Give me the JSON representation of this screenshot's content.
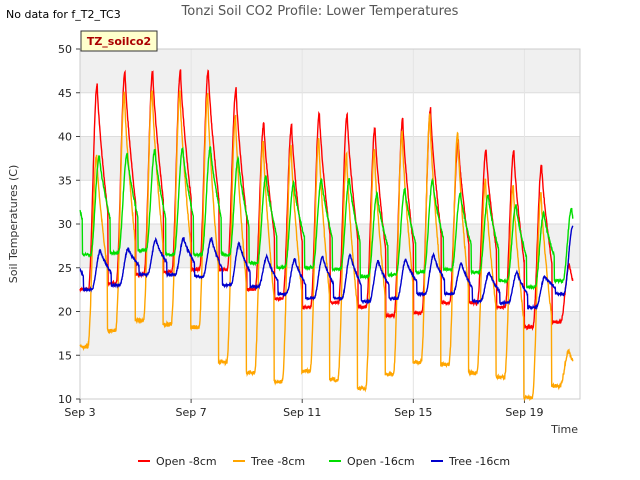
{
  "corner_note": "No data for f_T2_TC3",
  "chart_data": {
    "type": "line",
    "title": "Tonzi Soil CO2 Profile: Lower Temperatures",
    "xlabel": "Time",
    "ylabel": "Soil Temperatures (C)",
    "site_label": "TZ_soilco2",
    "x_start_day": 3.0,
    "xlim": [
      3.0,
      21.0
    ],
    "ylim": [
      10,
      50
    ],
    "yticks": [
      10,
      15,
      20,
      25,
      30,
      35,
      40,
      45,
      50
    ],
    "xticks": [
      {
        "day": 3,
        "label": "Sep 3"
      },
      {
        "day": 7,
        "label": "Sep 7"
      },
      {
        "day": 11,
        "label": "Sep 11"
      },
      {
        "day": 15,
        "label": "Sep 15"
      },
      {
        "day": 19,
        "label": "Sep 19"
      }
    ],
    "grid": true,
    "legend_position": "bottom",
    "x": [
      "Sep 3.3",
      "Sep 4.3",
      "Sep 5.3",
      "Sep 6.3",
      "Sep 7.3",
      "Sep 8.3",
      "Sep 9.3",
      "Sep 10.3",
      "Sep 11.3",
      "Sep 12.3",
      "Sep 13.3",
      "Sep 14.3",
      "Sep 15.3",
      "Sep 16.3",
      "Sep 17.3",
      "Sep 18.3",
      "Sep 19.3",
      "Sep 20.3"
    ],
    "series": [
      {
        "name": "Open -8cm",
        "color": "#ff0000",
        "daily_min": [
          22.5,
          23.2,
          24.2,
          24.5,
          24.8,
          24.8,
          22.5,
          21.5,
          20.5,
          21.0,
          20.5,
          19.5,
          19.8,
          21.0,
          21.0,
          20.5,
          18.2,
          18.8
        ],
        "daily_max": [
          46.0,
          47.5,
          47.5,
          47.6,
          47.6,
          45.5,
          41.5,
          41.3,
          42.7,
          42.5,
          41.0,
          42.0,
          43.2,
          39.5,
          38.5,
          38.4,
          36.8,
          null
        ]
      },
      {
        "name": "Tree -8cm",
        "color": "#ffa500",
        "daily_min": [
          16.0,
          17.8,
          19.0,
          18.5,
          18.2,
          14.2,
          13.0,
          12.0,
          13.2,
          12.2,
          11.2,
          12.8,
          14.2,
          14.0,
          13.0,
          12.5,
          10.2,
          11.5
        ],
        "daily_max": [
          38.0,
          45.0,
          45.3,
          45.2,
          44.8,
          42.5,
          39.5,
          39.0,
          39.8,
          38.0,
          38.5,
          40.5,
          42.5,
          40.5,
          35.0,
          34.5,
          33.5,
          null
        ]
      },
      {
        "name": "Open -16cm",
        "color": "#00dd00",
        "daily_min": [
          26.5,
          26.7,
          27.0,
          26.5,
          26.5,
          26.5,
          25.5,
          25.0,
          25.0,
          24.8,
          24.0,
          24.2,
          24.5,
          24.8,
          24.5,
          23.5,
          22.8,
          23.5
        ],
        "daily_max": [
          37.8,
          38.0,
          38.5,
          38.7,
          38.8,
          37.5,
          35.5,
          34.7,
          35.2,
          35.2,
          33.5,
          34.0,
          35.0,
          33.5,
          33.3,
          32.2,
          31.3,
          null
        ]
      },
      {
        "name": "Tree -16cm",
        "color": "#0000cc",
        "daily_min": [
          22.5,
          23.0,
          24.2,
          24.2,
          24.0,
          23.0,
          22.8,
          22.0,
          21.5,
          21.5,
          21.2,
          21.5,
          22.0,
          22.0,
          21.2,
          21.0,
          20.5,
          22.0
        ],
        "daily_max": [
          27.0,
          27.2,
          28.2,
          28.4,
          28.4,
          27.8,
          26.3,
          26.0,
          26.3,
          26.5,
          25.8,
          26.0,
          26.5,
          25.5,
          24.5,
          24.5,
          24.0,
          null
        ]
      }
    ]
  }
}
